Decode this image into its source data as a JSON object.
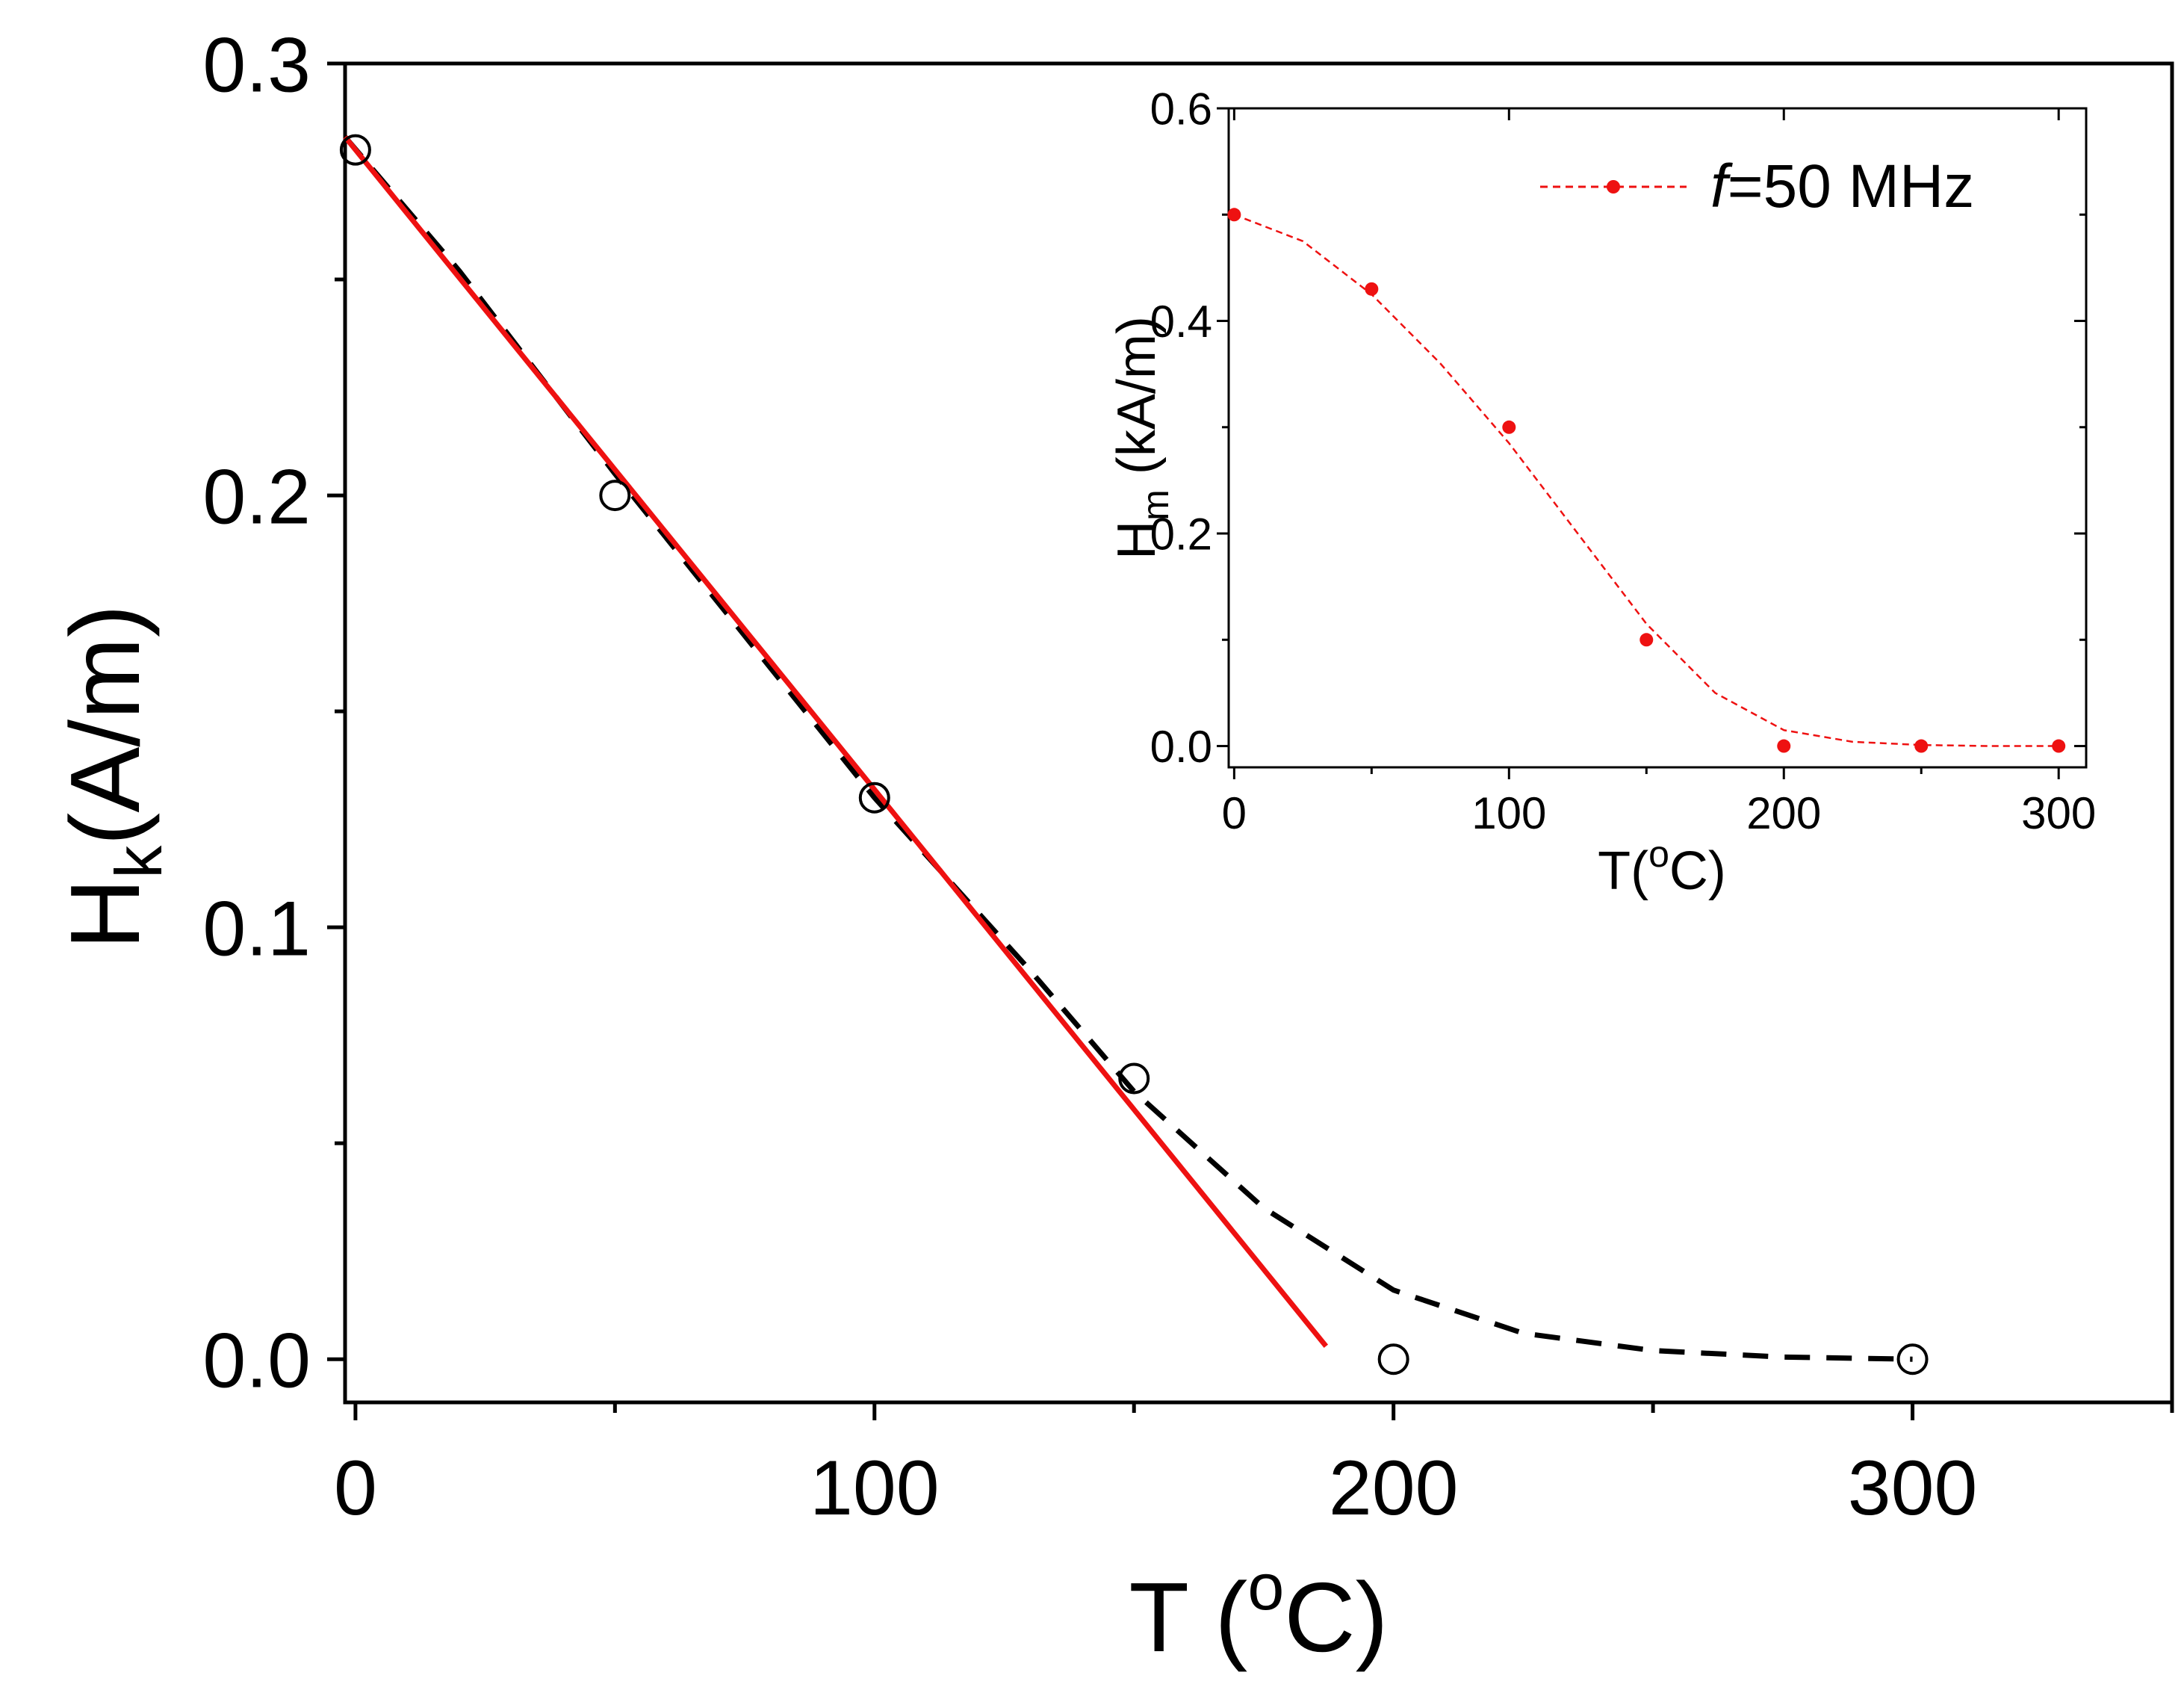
{
  "chart_data": [
    {
      "type": "scatter",
      "xlabel_main": "T (",
      "xlabel_sup": "o",
      "xlabel_tail": "C)",
      "ylabel_main": "H",
      "ylabel_sub": "k",
      "ylabel_tail": "(A/m)",
      "xlim": [
        -2,
        350
      ],
      "ylim": [
        -0.01,
        0.3
      ],
      "xticks": [
        0,
        100,
        200,
        300
      ],
      "xtick_labels": [
        "0",
        "100",
        "200",
        "300"
      ],
      "yticks": [
        0.0,
        0.1,
        0.2,
        0.3
      ],
      "ytick_labels": [
        "0.0",
        "0.1",
        "0.2",
        "0.3"
      ],
      "series": [
        {
          "name": "measured H_k",
          "kind": "open-circles",
          "color": "#000000",
          "x": [
            0,
            50,
            100,
            150,
            200,
            300
          ],
          "y": [
            0.28,
            0.2,
            0.13,
            0.065,
            0.0,
            0.0
          ]
        },
        {
          "name": "dashed fit",
          "kind": "dashed-line",
          "color": "#000000",
          "x": [
            -2,
            20,
            50,
            100,
            130,
            150,
            175,
            200,
            225,
            250,
            275,
            300
          ],
          "y": [
            0.283,
            0.252,
            0.205,
            0.13,
            0.09,
            0.062,
            0.035,
            0.016,
            0.006,
            0.002,
            0.0005,
            0.0
          ]
        },
        {
          "name": "linear fit",
          "kind": "solid-line",
          "color": "#ee1111",
          "x": [
            -2,
            187
          ],
          "y": [
            0.283,
            0.003
          ]
        }
      ]
    },
    {
      "type": "line",
      "inset": true,
      "xlabel_main": "T(",
      "xlabel_sup": "o",
      "xlabel_tail": "C)",
      "ylabel_main": "H",
      "ylabel_sub": "m",
      "ylabel_tail": " (kA/m)",
      "xlim": [
        -2,
        310
      ],
      "ylim": [
        -0.02,
        0.6
      ],
      "xticks": [
        0,
        100,
        200,
        300
      ],
      "xtick_labels": [
        "0",
        "100",
        "200",
        "300"
      ],
      "yticks": [
        0.0,
        0.2,
        0.4,
        0.6
      ],
      "ytick_labels": [
        "0.0",
        "0.2",
        "0.4",
        "0.6"
      ],
      "legend": {
        "label_italic": "f",
        "label_rest": "=50 MHz",
        "position": "top-right"
      },
      "series": [
        {
          "name": "f=50 MHz",
          "kind": "dots",
          "color": "#ee1111",
          "x": [
            0,
            50,
            100,
            150,
            200,
            250,
            300
          ],
          "y": [
            0.5,
            0.43,
            0.3,
            0.1,
            0.0,
            0.0,
            0.0
          ]
        },
        {
          "name": "f=50 MHz fit",
          "kind": "dashed-thin",
          "color": "#ee1111",
          "x": [
            0,
            25,
            50,
            75,
            100,
            125,
            150,
            175,
            200,
            225,
            250,
            275,
            300
          ],
          "y": [
            0.5,
            0.475,
            0.425,
            0.36,
            0.285,
            0.2,
            0.115,
            0.05,
            0.015,
            0.004,
            0.001,
            0.0,
            0.0
          ]
        }
      ]
    }
  ]
}
